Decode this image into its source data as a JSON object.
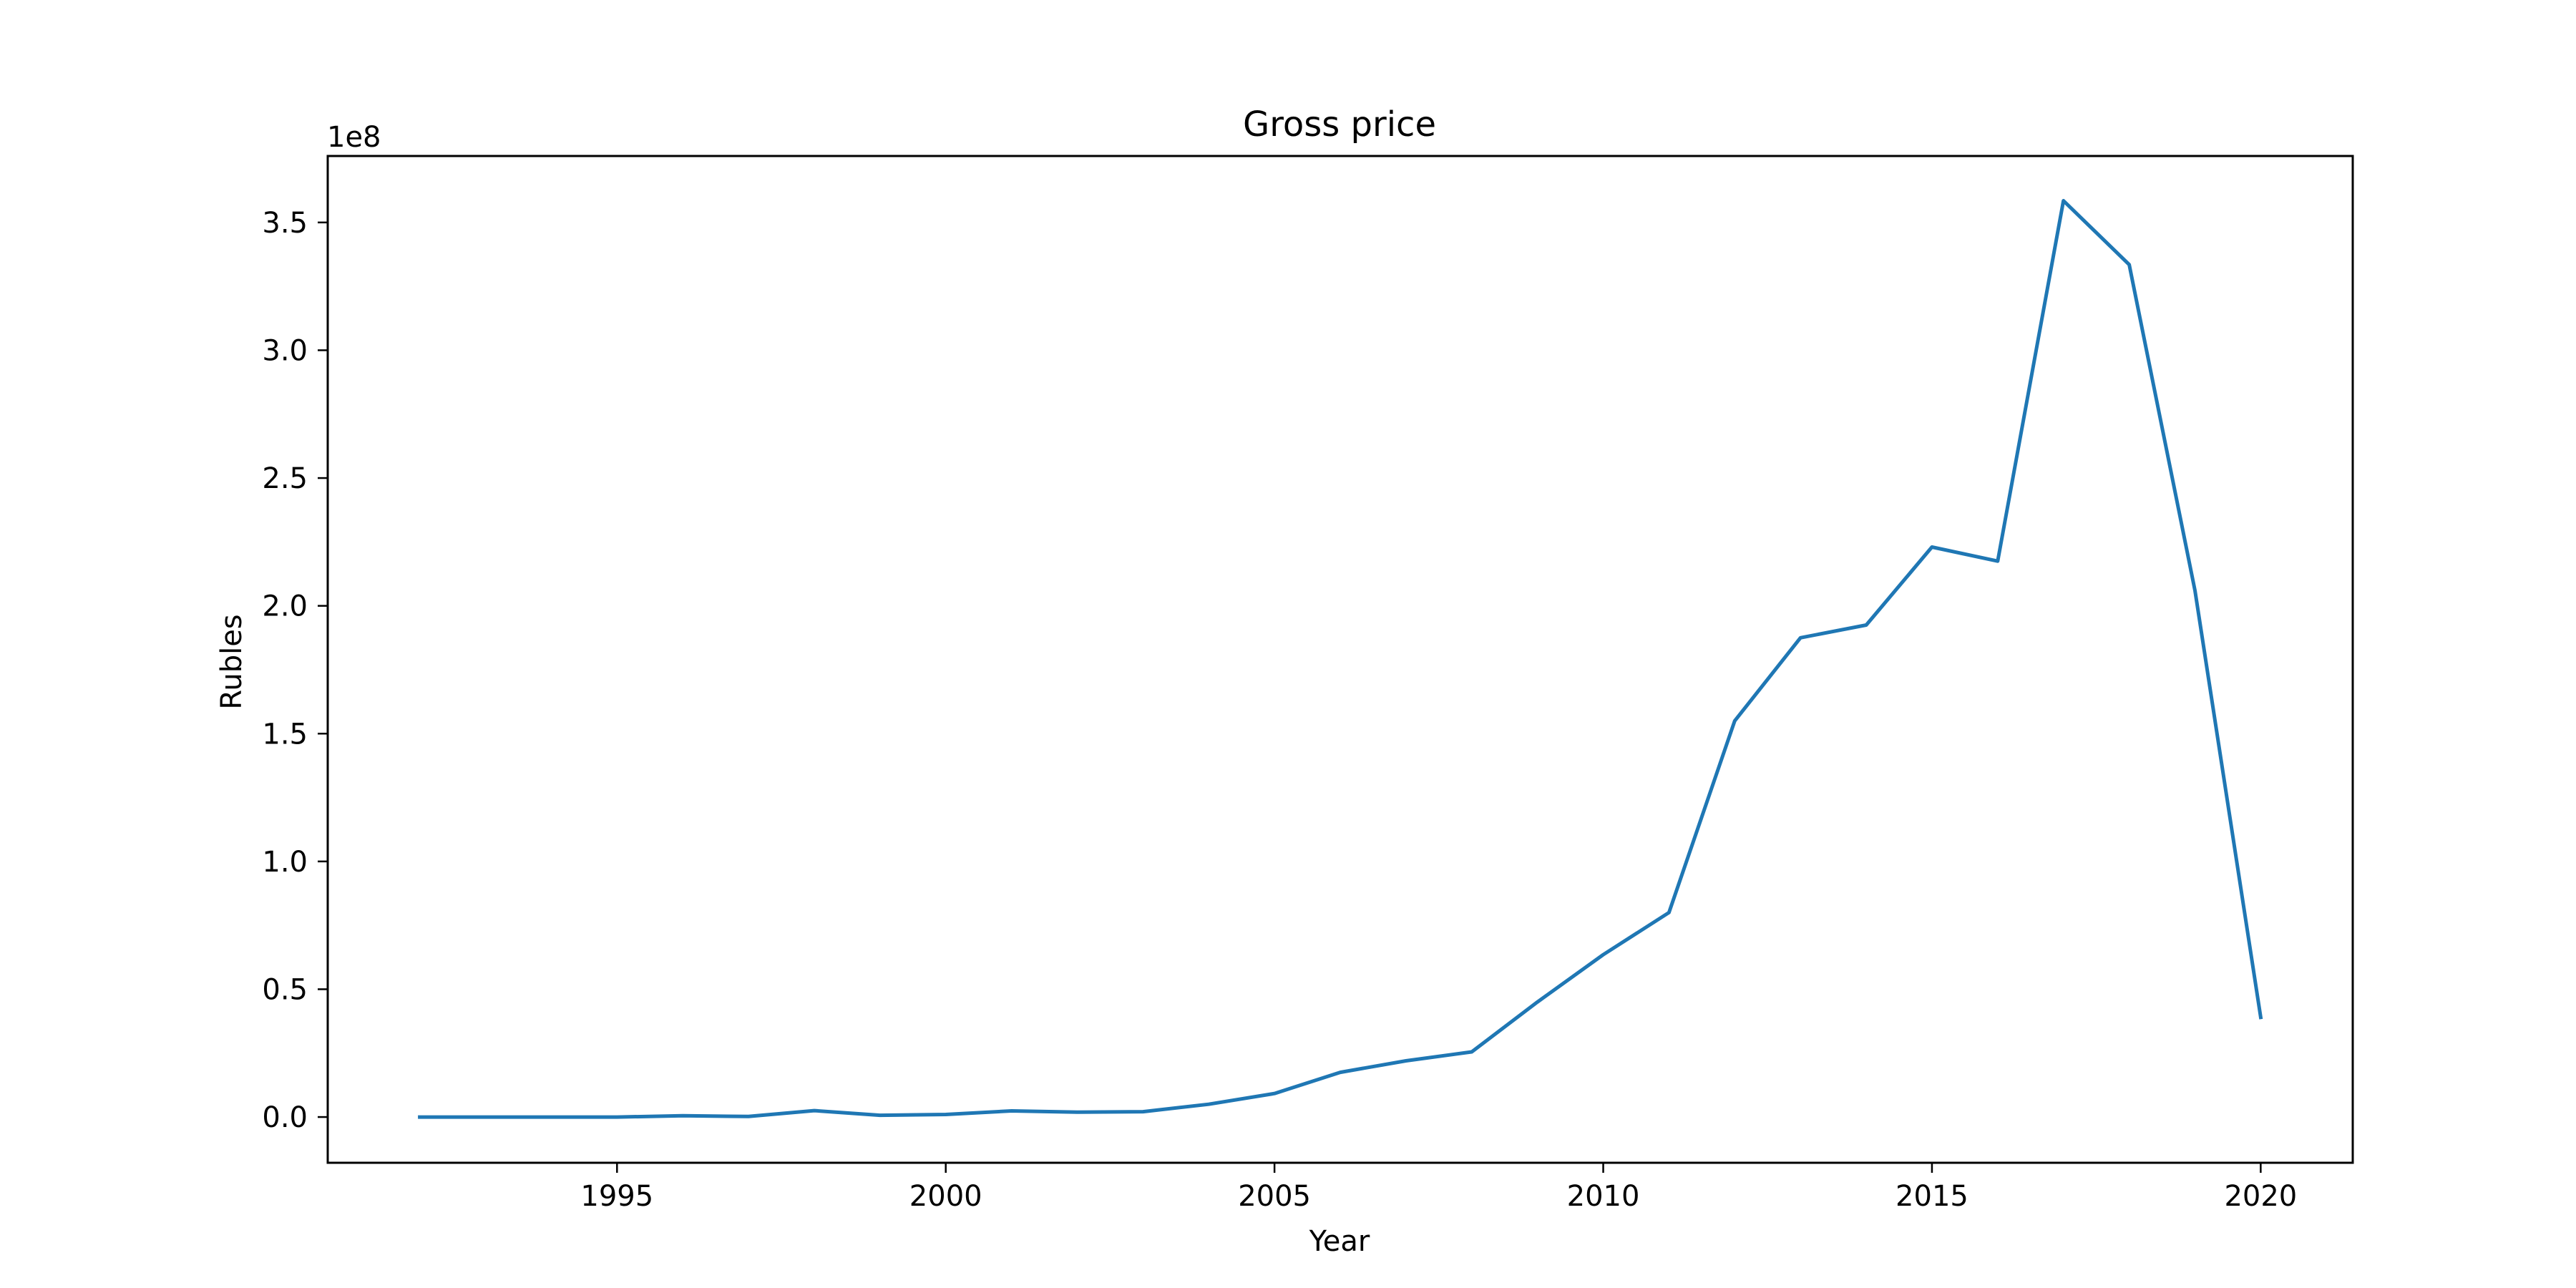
{
  "chart_data": {
    "type": "line",
    "title": "Gross price",
    "xlabel": "Year",
    "ylabel": "Rubles",
    "y_offset_text": "1e8",
    "x": [
      1992,
      1993,
      1994,
      1995,
      1996,
      1997,
      1998,
      1999,
      2000,
      2001,
      2002,
      2003,
      2004,
      2005,
      2006,
      2007,
      2008,
      2009,
      2010,
      2011,
      2012,
      2013,
      2014,
      2015,
      2016,
      2017,
      2018,
      2019,
      2020
    ],
    "series": [
      {
        "values": [
          0,
          0,
          0,
          0,
          500000,
          200000,
          2500000,
          700000,
          1000000,
          2400000,
          1900000,
          2100000,
          5000000,
          9200000,
          17500000,
          22000000,
          25500000,
          45000000,
          63500000,
          80000000,
          155000000,
          187500000,
          192500000,
          223000000,
          217500000,
          358500000,
          333500000,
          206000000,
          39000000
        ],
        "color": "#1f77b4"
      }
    ],
    "xlim": [
      1990.6,
      2021.4
    ],
    "ylim": [
      -17900000,
      376000000
    ],
    "x_ticks": [
      1995,
      2000,
      2005,
      2010,
      2015,
      2020
    ],
    "x_tick_labels": [
      "1995",
      "2000",
      "2005",
      "2010",
      "2015",
      "2020"
    ],
    "y_ticks": [
      0,
      50000000,
      100000000,
      150000000,
      200000000,
      250000000,
      300000000,
      350000000
    ],
    "y_tick_labels": [
      "0.0",
      "0.5",
      "1.0",
      "1.5",
      "2.0",
      "2.5",
      "3.0",
      "3.5"
    ],
    "grid": false,
    "legend": "none"
  }
}
